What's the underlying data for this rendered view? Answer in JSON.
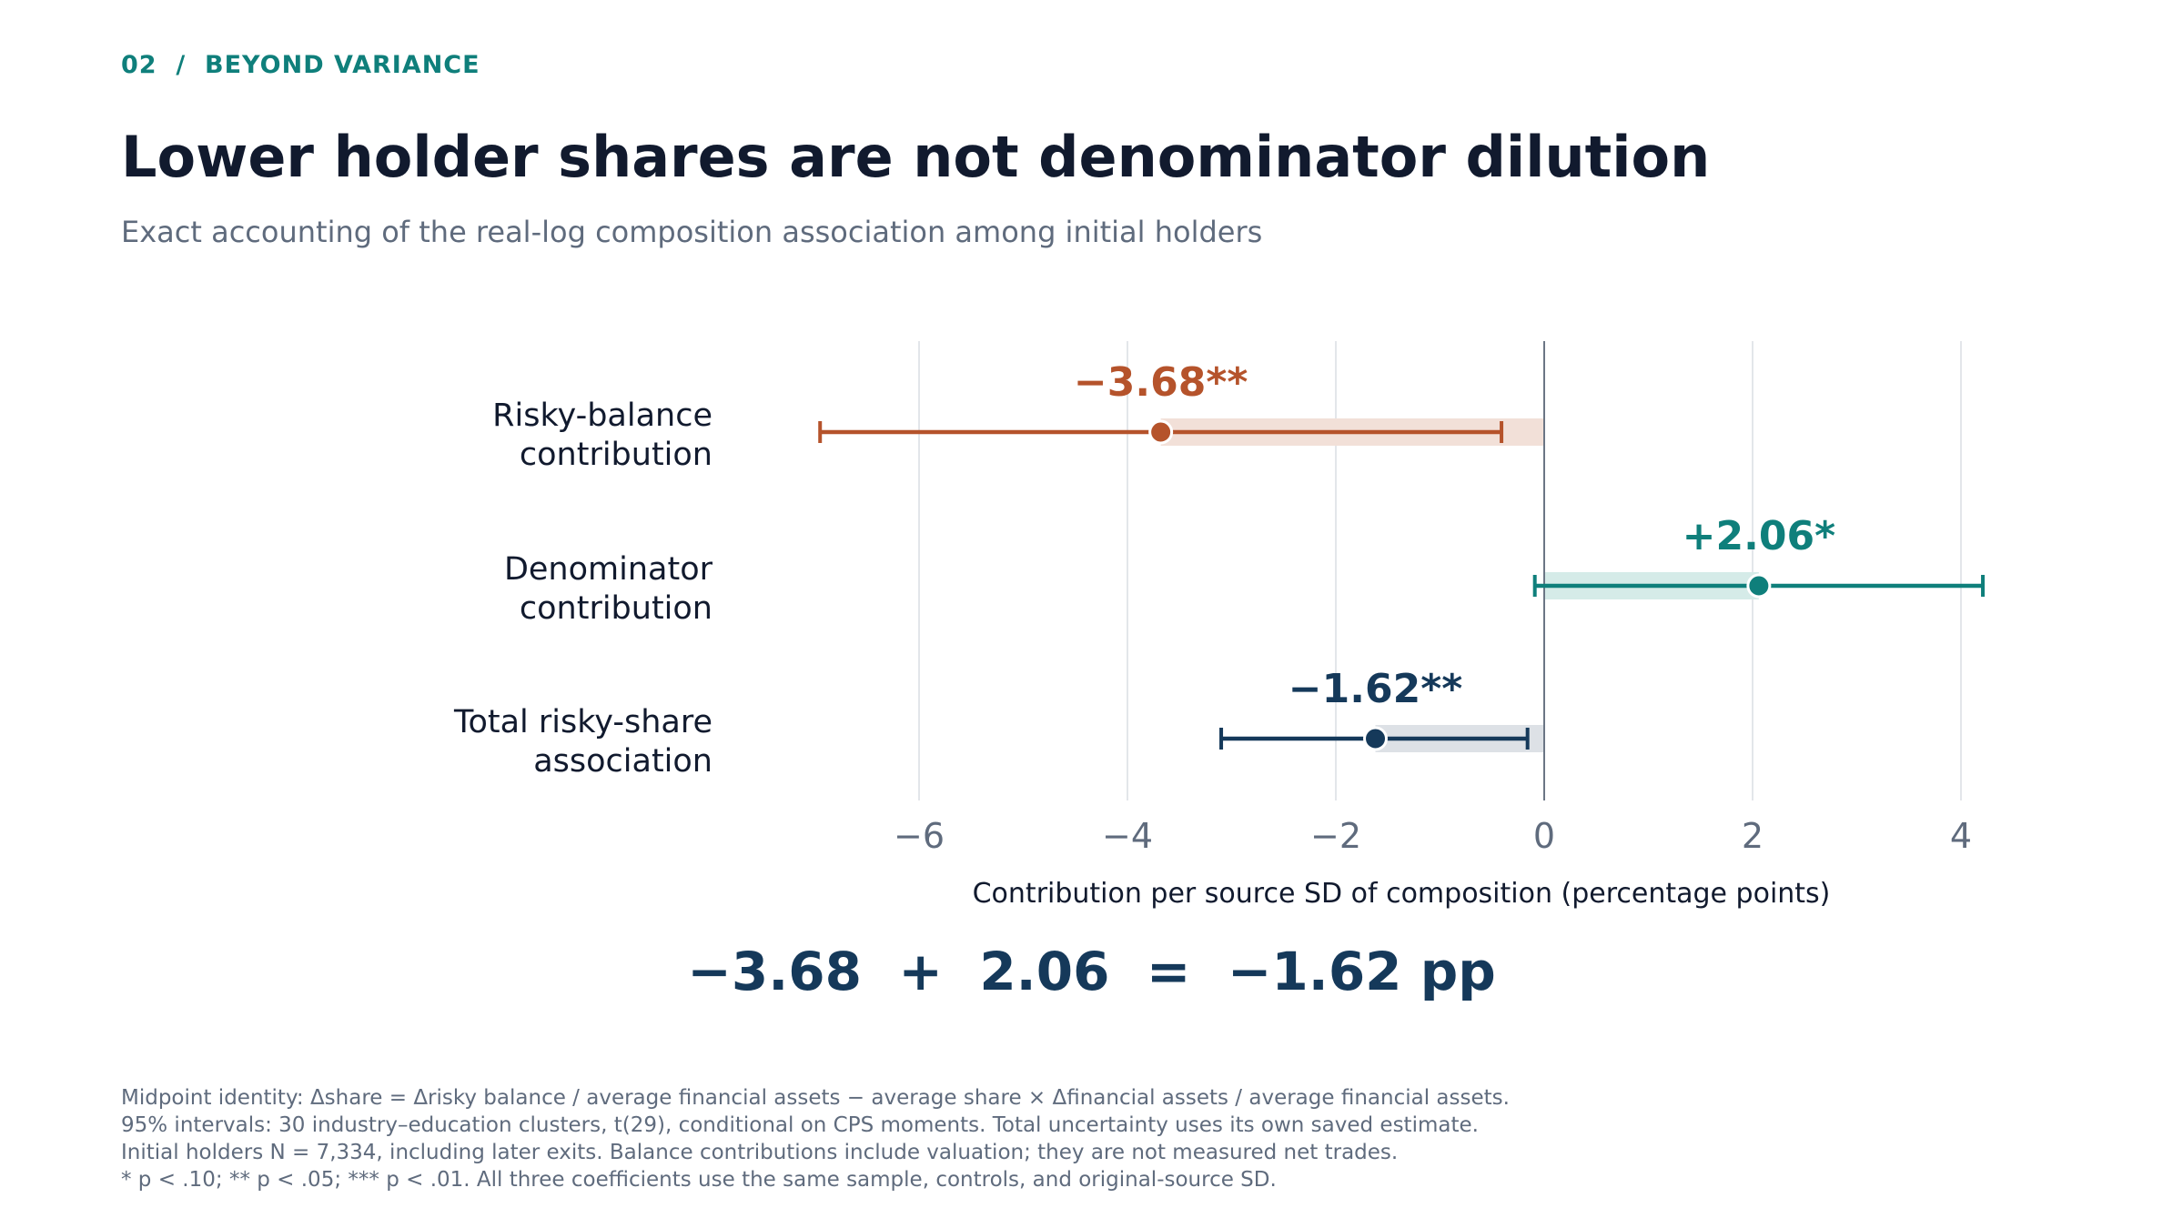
{
  "header": {
    "eyebrow": "02  /  BEYOND VARIANCE",
    "title": "Lower holder shares are not denominator dilution",
    "subtitle": "Exact accounting of the real-log composition association among initial holders"
  },
  "chart_data": {
    "type": "forest",
    "xlabel": "Contribution per source SD of composition (percentage points)",
    "xlim": [
      -7.4,
      4.7
    ],
    "xticks": [
      -6,
      -4,
      -2,
      0,
      2,
      4
    ],
    "xtick_labels": [
      "−6",
      "−4",
      "−2",
      "0",
      "2",
      "4"
    ],
    "grid": "vertical",
    "rows": [
      {
        "label_lines": [
          "Risky-balance",
          "contribution"
        ],
        "estimate": -3.68,
        "ci_low": -6.95,
        "ci_high": -0.41,
        "value_label": "−3.68**",
        "color": "#b5532b",
        "band_color": "#f2e0d8"
      },
      {
        "label_lines": [
          "Denominator",
          "contribution"
        ],
        "estimate": 2.06,
        "ci_low": -0.09,
        "ci_high": 4.21,
        "value_label": "+2.06*",
        "color": "#0f7f7b",
        "band_color": "#d5ebe8"
      },
      {
        "label_lines": [
          "Total risky-share",
          "association"
        ],
        "estimate": -1.62,
        "ci_low": -3.1,
        "ci_high": -0.16,
        "value_label": "−1.62**",
        "color": "#15395a",
        "band_color": "#dde1e6"
      }
    ]
  },
  "identity": {
    "a": "−3.68",
    "op1": "+",
    "b": "2.06",
    "op2": "=",
    "c": "−1.62 pp"
  },
  "notes": [
    "Midpoint identity: Δshare = Δrisky balance / average financial assets − average share × Δfinancial assets / average financial assets.",
    "95% intervals: 30 industry–education clusters, t(29), conditional on CPS moments. Total uncertainty uses its own saved estimate.",
    "Initial holders N = 7,334, including later exits. Balance contributions include valuation; they are not measured net trades.",
    "* p < .10; ** p < .05; *** p < .01. All three coefficients use the same sample, controls, and original-source SD."
  ],
  "colors": {
    "axis_tick": "#5f6b7d",
    "grid": "#e3e6ea",
    "zero_line": "#6b7685",
    "text_dark": "#111a2e"
  }
}
